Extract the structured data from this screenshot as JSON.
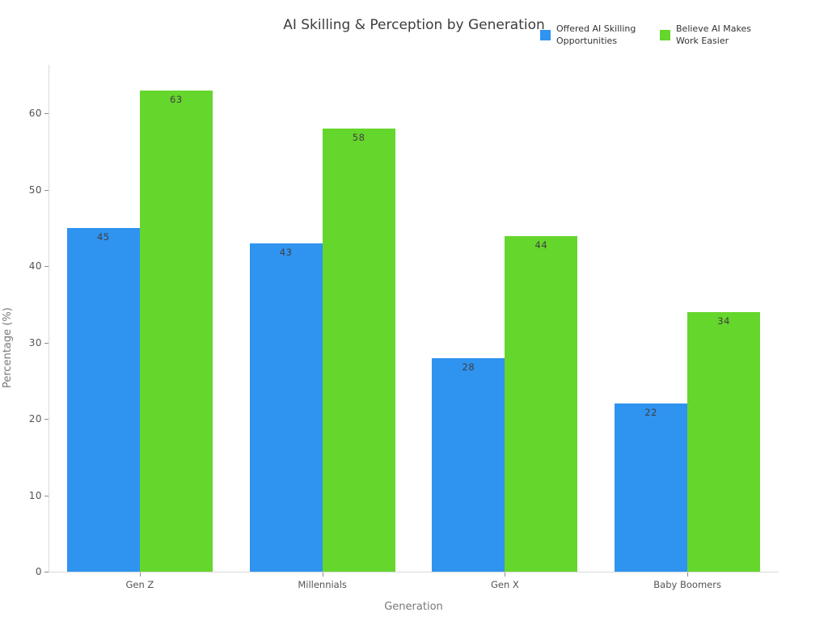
{
  "title": "AI Skilling & Perception by Generation",
  "chart_data": {
    "type": "bar",
    "title": "AI Skilling & Perception by Generation",
    "xlabel": "Generation",
    "ylabel": "Percentage (%)",
    "categories": [
      "Gen Z",
      "Millennials",
      "Gen X",
      "Baby Boomers"
    ],
    "series": [
      {
        "name": "Offered AI Skilling Opportunities",
        "color": "#2f93f0",
        "values": [
          45,
          43,
          28,
          22
        ]
      },
      {
        "name": "Believe AI Makes Work Easier",
        "color": "#65d62c",
        "values": [
          63,
          58,
          44,
          34
        ]
      }
    ],
    "value_labels_shown": true,
    "y_ticks": [
      0,
      10,
      20,
      30,
      40,
      50,
      60
    ],
    "ylim": [
      0,
      66.4
    ],
    "grid": false,
    "legend_position": "top-right",
    "plot_background": "#ffffff"
  }
}
